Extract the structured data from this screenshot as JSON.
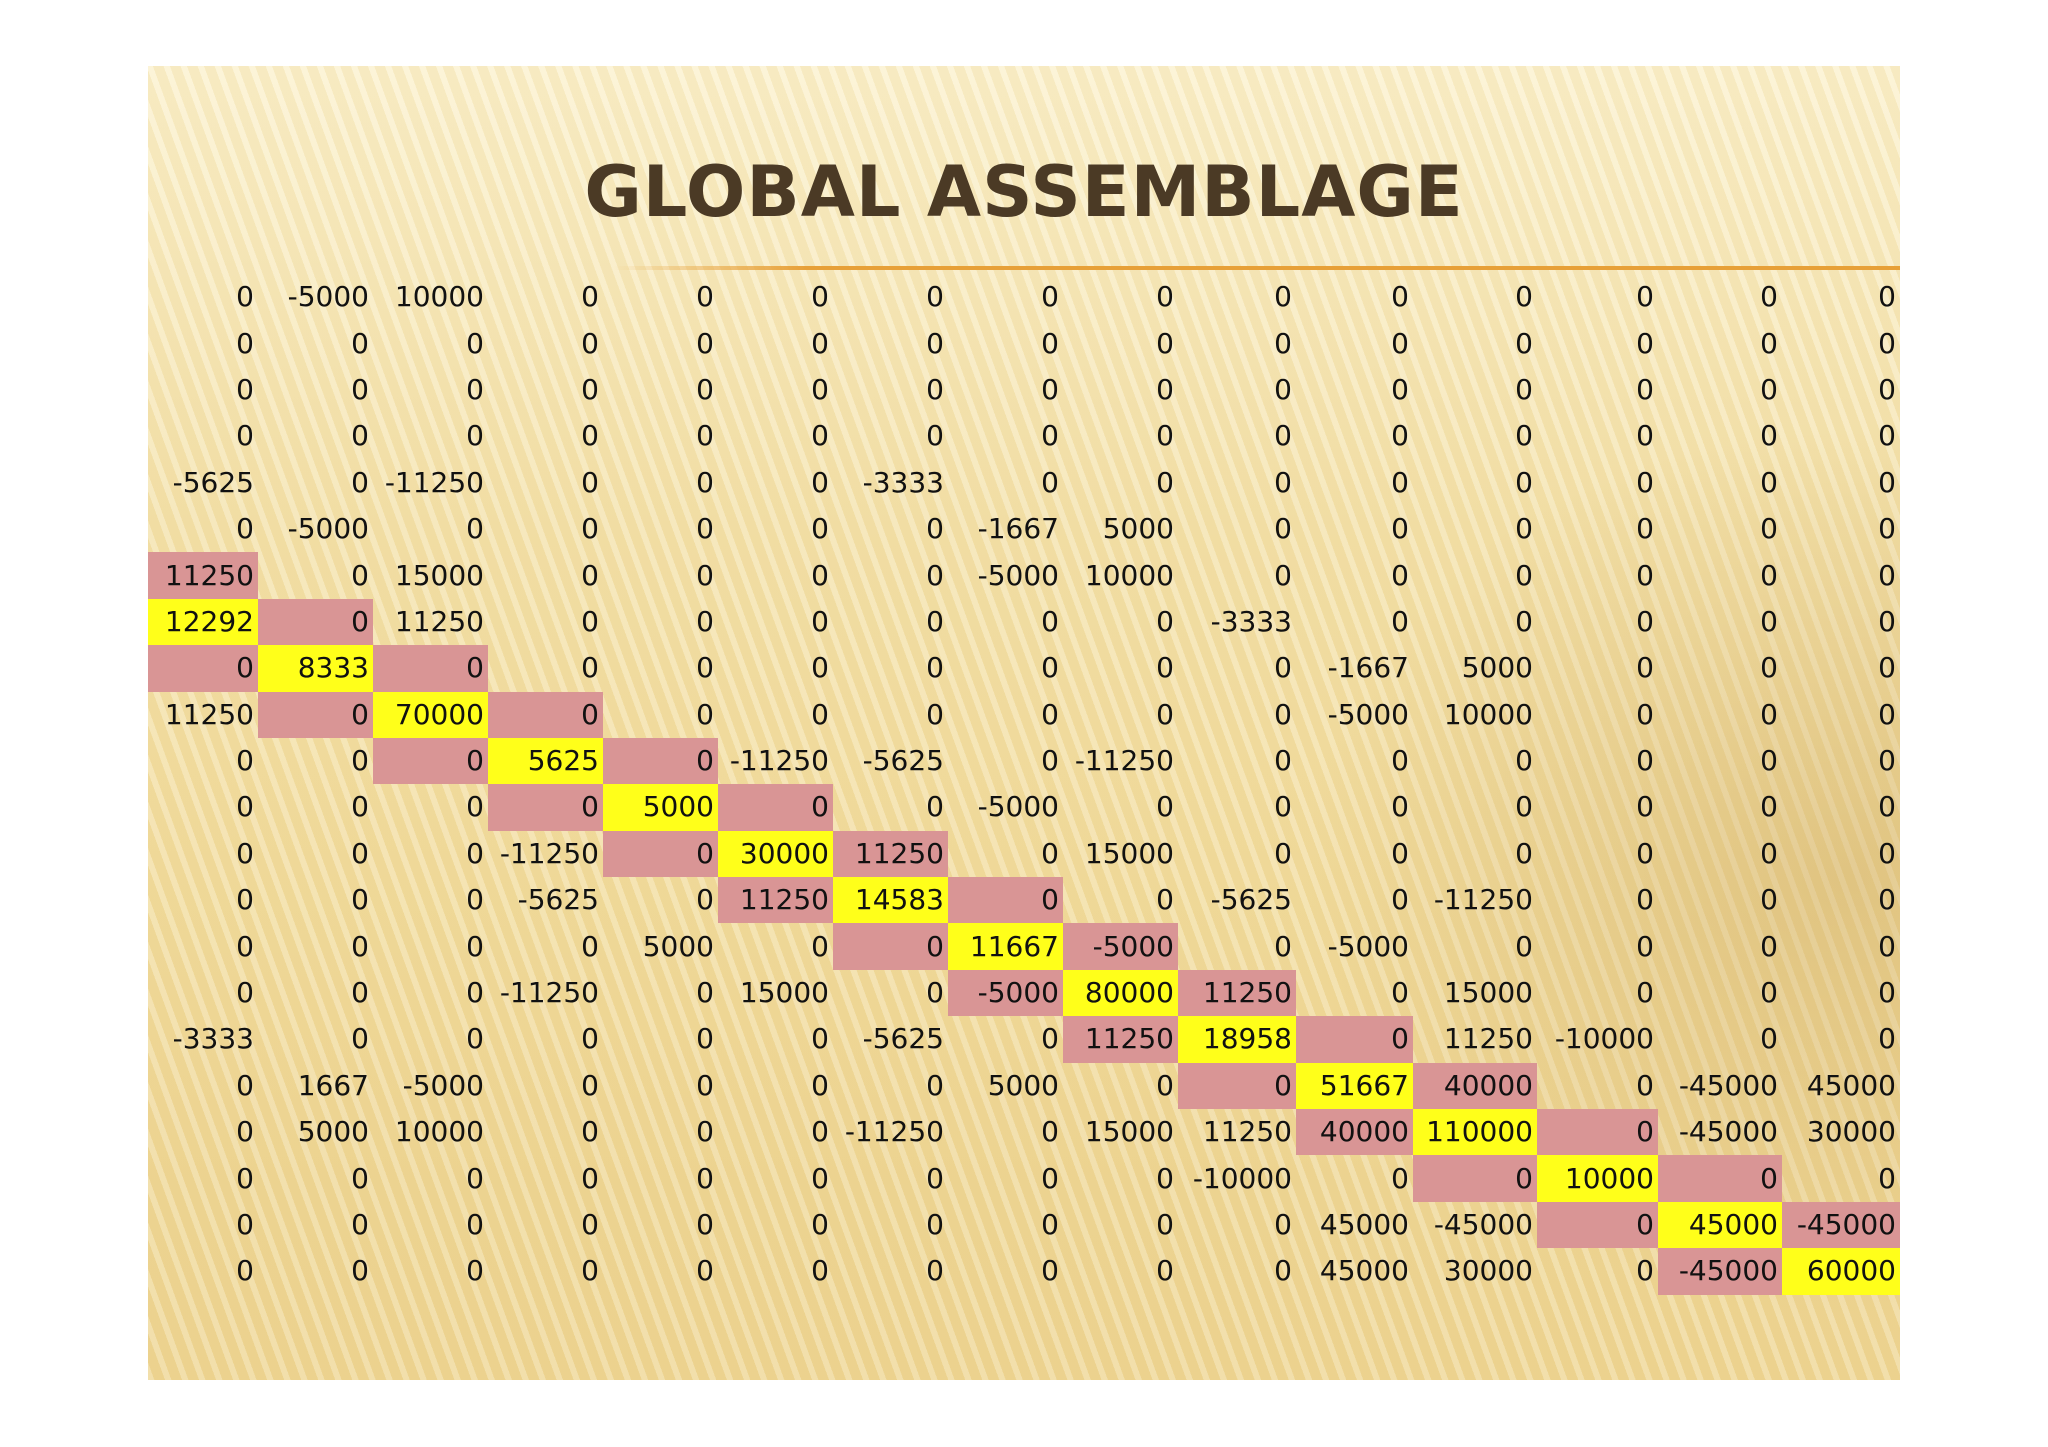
{
  "slide": {
    "title": "GLOBAL ASSEMBLAGE"
  },
  "colors": {
    "diagonal_highlight": "#ffff1a",
    "band_highlight": "#d99595",
    "title_color": "#4b3a25",
    "rule_color": "#e7a038"
  },
  "matrix": {
    "rows": [
      [
        "0",
        "-5000",
        "10000",
        "0",
        "0",
        "0",
        "0",
        "0",
        "0",
        "0",
        "0",
        "0",
        "0",
        "0",
        "0"
      ],
      [
        "0",
        "0",
        "0",
        "0",
        "0",
        "0",
        "0",
        "0",
        "0",
        "0",
        "0",
        "0",
        "0",
        "0",
        "0"
      ],
      [
        "0",
        "0",
        "0",
        "0",
        "0",
        "0",
        "0",
        "0",
        "0",
        "0",
        "0",
        "0",
        "0",
        "0",
        "0"
      ],
      [
        "0",
        "0",
        "0",
        "0",
        "0",
        "0",
        "0",
        "0",
        "0",
        "0",
        "0",
        "0",
        "0",
        "0",
        "0"
      ],
      [
        "-5625",
        "0",
        "-11250",
        "0",
        "0",
        "0",
        "-3333",
        "0",
        "0",
        "0",
        "0",
        "0",
        "0",
        "0",
        "0"
      ],
      [
        "0",
        "-5000",
        "0",
        "0",
        "0",
        "0",
        "0",
        "-1667",
        "5000",
        "0",
        "0",
        "0",
        "0",
        "0",
        "0"
      ],
      [
        "11250",
        "0",
        "15000",
        "0",
        "0",
        "0",
        "0",
        "-5000",
        "10000",
        "0",
        "0",
        "0",
        "0",
        "0",
        "0"
      ],
      [
        "12292",
        "0",
        "11250",
        "0",
        "0",
        "0",
        "0",
        "0",
        "0",
        "-3333",
        "0",
        "0",
        "0",
        "0",
        "0"
      ],
      [
        "0",
        "8333",
        "0",
        "0",
        "0",
        "0",
        "0",
        "0",
        "0",
        "0",
        "-1667",
        "5000",
        "0",
        "0",
        "0"
      ],
      [
        "11250",
        "0",
        "70000",
        "0",
        "0",
        "0",
        "0",
        "0",
        "0",
        "0",
        "-5000",
        "10000",
        "0",
        "0",
        "0"
      ],
      [
        "0",
        "0",
        "0",
        "5625",
        "0",
        "-11250",
        "-5625",
        "0",
        "-11250",
        "0",
        "0",
        "0",
        "0",
        "0",
        "0"
      ],
      [
        "0",
        "0",
        "0",
        "0",
        "5000",
        "0",
        "0",
        "-5000",
        "0",
        "0",
        "0",
        "0",
        "0",
        "0",
        "0"
      ],
      [
        "0",
        "0",
        "0",
        "-11250",
        "0",
        "30000",
        "11250",
        "0",
        "15000",
        "0",
        "0",
        "0",
        "0",
        "0",
        "0"
      ],
      [
        "0",
        "0",
        "0",
        "-5625",
        "0",
        "11250",
        "14583",
        "0",
        "0",
        "-5625",
        "0",
        "-11250",
        "0",
        "0",
        "0"
      ],
      [
        "0",
        "0",
        "0",
        "0",
        "5000",
        "0",
        "0",
        "11667",
        "-5000",
        "0",
        "-5000",
        "0",
        "0",
        "0",
        "0"
      ],
      [
        "0",
        "0",
        "0",
        "-11250",
        "0",
        "15000",
        "0",
        "-5000",
        "80000",
        "11250",
        "0",
        "15000",
        "0",
        "0",
        "0"
      ],
      [
        "-3333",
        "0",
        "0",
        "0",
        "0",
        "0",
        "-5625",
        "0",
        "11250",
        "18958",
        "0",
        "11250",
        "-10000",
        "0",
        "0"
      ],
      [
        "0",
        "1667",
        "-5000",
        "0",
        "0",
        "0",
        "0",
        "5000",
        "0",
        "0",
        "51667",
        "40000",
        "0",
        "-45000",
        "45000"
      ],
      [
        "0",
        "5000",
        "10000",
        "0",
        "0",
        "0",
        "-11250",
        "0",
        "15000",
        "11250",
        "40000",
        "110000",
        "0",
        "-45000",
        "30000"
      ],
      [
        "0",
        "0",
        "0",
        "0",
        "0",
        "0",
        "0",
        "0",
        "0",
        "-10000",
        "0",
        "0",
        "10000",
        "0",
        "0"
      ],
      [
        "0",
        "0",
        "0",
        "0",
        "0",
        "0",
        "0",
        "0",
        "0",
        "0",
        "45000",
        "-45000",
        "0",
        "45000",
        "-45000"
      ],
      [
        "0",
        "0",
        "0",
        "0",
        "0",
        "0",
        "0",
        "0",
        "0",
        "0",
        "45000",
        "30000",
        "0",
        "-45000",
        "60000"
      ]
    ],
    "highlights": [
      {
        "row": 6,
        "col": 0,
        "kind": "band"
      },
      {
        "row": 7,
        "col": 0,
        "kind": "diag"
      },
      {
        "row": 7,
        "col": 1,
        "kind": "band"
      },
      {
        "row": 8,
        "col": 0,
        "kind": "band"
      },
      {
        "row": 8,
        "col": 1,
        "kind": "diag"
      },
      {
        "row": 8,
        "col": 2,
        "kind": "band"
      },
      {
        "row": 9,
        "col": 1,
        "kind": "band"
      },
      {
        "row": 9,
        "col": 2,
        "kind": "diag"
      },
      {
        "row": 9,
        "col": 3,
        "kind": "band"
      },
      {
        "row": 10,
        "col": 2,
        "kind": "band"
      },
      {
        "row": 10,
        "col": 3,
        "kind": "diag"
      },
      {
        "row": 10,
        "col": 4,
        "kind": "band"
      },
      {
        "row": 11,
        "col": 3,
        "kind": "band"
      },
      {
        "row": 11,
        "col": 4,
        "kind": "diag"
      },
      {
        "row": 11,
        "col": 5,
        "kind": "band"
      },
      {
        "row": 12,
        "col": 4,
        "kind": "band"
      },
      {
        "row": 12,
        "col": 5,
        "kind": "diag"
      },
      {
        "row": 12,
        "col": 6,
        "kind": "band"
      },
      {
        "row": 13,
        "col": 5,
        "kind": "band"
      },
      {
        "row": 13,
        "col": 6,
        "kind": "diag"
      },
      {
        "row": 13,
        "col": 7,
        "kind": "band"
      },
      {
        "row": 14,
        "col": 6,
        "kind": "band"
      },
      {
        "row": 14,
        "col": 7,
        "kind": "diag"
      },
      {
        "row": 14,
        "col": 8,
        "kind": "band"
      },
      {
        "row": 15,
        "col": 7,
        "kind": "band"
      },
      {
        "row": 15,
        "col": 8,
        "kind": "diag"
      },
      {
        "row": 15,
        "col": 9,
        "kind": "band"
      },
      {
        "row": 16,
        "col": 8,
        "kind": "band"
      },
      {
        "row": 16,
        "col": 9,
        "kind": "diag"
      },
      {
        "row": 16,
        "col": 10,
        "kind": "band"
      },
      {
        "row": 17,
        "col": 9,
        "kind": "band"
      },
      {
        "row": 17,
        "col": 10,
        "kind": "diag"
      },
      {
        "row": 17,
        "col": 11,
        "kind": "band"
      },
      {
        "row": 18,
        "col": 10,
        "kind": "band"
      },
      {
        "row": 18,
        "col": 11,
        "kind": "diag"
      },
      {
        "row": 18,
        "col": 12,
        "kind": "band"
      },
      {
        "row": 19,
        "col": 11,
        "kind": "band"
      },
      {
        "row": 19,
        "col": 12,
        "kind": "diag"
      },
      {
        "row": 19,
        "col": 13,
        "kind": "band"
      },
      {
        "row": 20,
        "col": 12,
        "kind": "band"
      },
      {
        "row": 20,
        "col": 13,
        "kind": "diag"
      },
      {
        "row": 20,
        "col": 14,
        "kind": "band"
      },
      {
        "row": 21,
        "col": 13,
        "kind": "band"
      },
      {
        "row": 21,
        "col": 14,
        "kind": "diag"
      }
    ]
  }
}
